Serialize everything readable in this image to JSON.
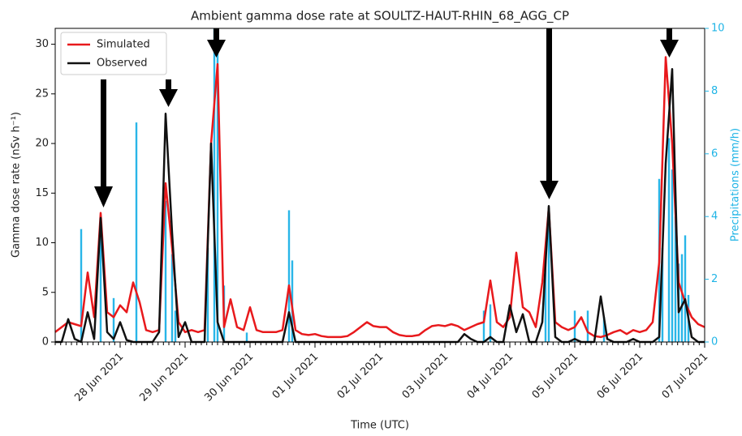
{
  "chart_data": {
    "type": "line",
    "title": "Ambient gamma dose rate at SOULTZ-HAUT-RHIN_68_AGG_CP",
    "xlabel": "Time (UTC)",
    "ylabel": "Gamma dose rate (nSv h⁻¹)",
    "y2label": "Precipitations (mm/h)",
    "xlim": [
      0,
      10
    ],
    "ylim": [
      0,
      31.6
    ],
    "y2lim": [
      0,
      10
    ],
    "xticks": [
      {
        "value": 1,
        "label": "28 Jun 2021"
      },
      {
        "value": 2,
        "label": "29 Jun 2021"
      },
      {
        "value": 3,
        "label": "30 Jun 2021"
      },
      {
        "value": 4,
        "label": "01 Jul 2021"
      },
      {
        "value": 5,
        "label": "02 Jul 2021"
      },
      {
        "value": 6,
        "label": "03 Jul 2021"
      },
      {
        "value": 7,
        "label": "04 Jul 2021"
      },
      {
        "value": 8,
        "label": "05 Jul 2021"
      },
      {
        "value": 9,
        "label": "06 Jul 2021"
      },
      {
        "value": 10,
        "label": "07 Jul 2021"
      }
    ],
    "yticks": [
      0,
      5,
      10,
      15,
      20,
      25,
      30
    ],
    "y2ticks": [
      0,
      2,
      4,
      6,
      8,
      10
    ],
    "legend": "upper left",
    "x": [
      0,
      0.1,
      0.2,
      0.3,
      0.4,
      0.5,
      0.6,
      0.7,
      0.8,
      0.9,
      1,
      1.1,
      1.2,
      1.3,
      1.4,
      1.5,
      1.6,
      1.7,
      1.8,
      1.9,
      2,
      2.1,
      2.2,
      2.3,
      2.4,
      2.5,
      2.6,
      2.7,
      2.8,
      2.9,
      3,
      3.1,
      3.2,
      3.3,
      3.4,
      3.5,
      3.6,
      3.7,
      3.8,
      3.9,
      4,
      4.1,
      4.2,
      4.3,
      4.4,
      4.5,
      4.6,
      4.7,
      4.8,
      4.9,
      5,
      5.1,
      5.2,
      5.3,
      5.4,
      5.5,
      5.6,
      5.7,
      5.8,
      5.9,
      6,
      6.1,
      6.2,
      6.3,
      6.4,
      6.5,
      6.6,
      6.7,
      6.8,
      6.9,
      7,
      7.1,
      7.2,
      7.3,
      7.4,
      7.5,
      7.6,
      7.7,
      7.8,
      7.9,
      8,
      8.1,
      8.2,
      8.3,
      8.4,
      8.5,
      8.6,
      8.7,
      8.8,
      8.9,
      9,
      9.1,
      9.2,
      9.3,
      9.4,
      9.5,
      9.6,
      9.7,
      9.8,
      9.9,
      10
    ],
    "series": [
      {
        "name": "Simulated",
        "color": "#e8191c",
        "values": [
          1.0,
          1.5,
          2.0,
          1.8,
          1.6,
          7.0,
          2.5,
          13.0,
          3.0,
          2.5,
          3.7,
          3.0,
          6.0,
          4.0,
          1.2,
          1.0,
          1.2,
          16.0,
          9.5,
          2.0,
          1.0,
          1.2,
          1.0,
          1.2,
          20.0,
          28.0,
          1.5,
          4.3,
          1.5,
          1.2,
          3.5,
          1.2,
          1.0,
          1.0,
          1.0,
          1.2,
          5.7,
          1.2,
          0.8,
          0.7,
          0.8,
          0.6,
          0.5,
          0.5,
          0.5,
          0.6,
          1.0,
          1.5,
          2.0,
          1.6,
          1.5,
          1.5,
          1.0,
          0.7,
          0.6,
          0.6,
          0.7,
          1.2,
          1.6,
          1.7,
          1.6,
          1.8,
          1.6,
          1.2,
          1.5,
          1.8,
          2.0,
          6.2,
          2.0,
          1.5,
          2.5,
          9.0,
          3.5,
          3.0,
          1.5,
          6.0,
          13.5,
          2.0,
          1.5,
          1.2,
          1.5,
          2.5,
          1.0,
          0.6,
          0.5,
          0.7,
          1.0,
          1.2,
          0.8,
          1.2,
          1.0,
          1.2,
          2.0,
          8.0,
          28.7,
          20.0,
          6.0,
          4.0,
          2.5,
          1.8,
          1.5
        ]
      },
      {
        "name": "Observed",
        "color": "#111111",
        "values": [
          0,
          0,
          2.3,
          0.3,
          0,
          3.0,
          0.3,
          12.5,
          1.0,
          0.3,
          2.0,
          0.2,
          0,
          0,
          0,
          0,
          1.0,
          23.0,
          11.0,
          0.5,
          2.0,
          0,
          0,
          0,
          20.0,
          2.0,
          0,
          0,
          0,
          0,
          0,
          0,
          0,
          0,
          0,
          0,
          3.0,
          0,
          0,
          0,
          0,
          0,
          0,
          0,
          0,
          0,
          0,
          0,
          0,
          0,
          0,
          0,
          0,
          0,
          0,
          0,
          0,
          0,
          0,
          0,
          0,
          0,
          0,
          0.8,
          0.3,
          0,
          0,
          0.5,
          0,
          0,
          3.7,
          1.0,
          2.8,
          0,
          0,
          2.0,
          13.7,
          0.5,
          0,
          0,
          0.3,
          0,
          0,
          0,
          4.6,
          0.3,
          0,
          0,
          0,
          0.3,
          0,
          0,
          0,
          0.5,
          18.0,
          27.5,
          3.0,
          4.3,
          0.5,
          0,
          0
        ]
      }
    ],
    "precipitation": {
      "color": "#29b6e8",
      "axis": "y2",
      "x": [
        0.4,
        0.7,
        0.9,
        1.25,
        1.7,
        1.8,
        1.85,
        2.35,
        2.45,
        2.5,
        2.6,
        2.95,
        3.6,
        3.65,
        6.6,
        6.7,
        7.55,
        7.6,
        8.0,
        8.2,
        8.45,
        9.3,
        9.35,
        9.45,
        9.5,
        9.55,
        9.6,
        9.65,
        9.7,
        9.75
      ],
      "values": [
        3.6,
        4.0,
        1.4,
        7.0,
        4.5,
        2.8,
        1.0,
        3.0,
        10.0,
        10.0,
        1.8,
        0.3,
        4.2,
        2.6,
        1.0,
        1.2,
        2.8,
        4.3,
        1.0,
        1.0,
        0.8,
        5.2,
        3.0,
        6.5,
        5.5,
        4.0,
        2.5,
        2.8,
        3.4,
        1.5
      ]
    }
  }
}
